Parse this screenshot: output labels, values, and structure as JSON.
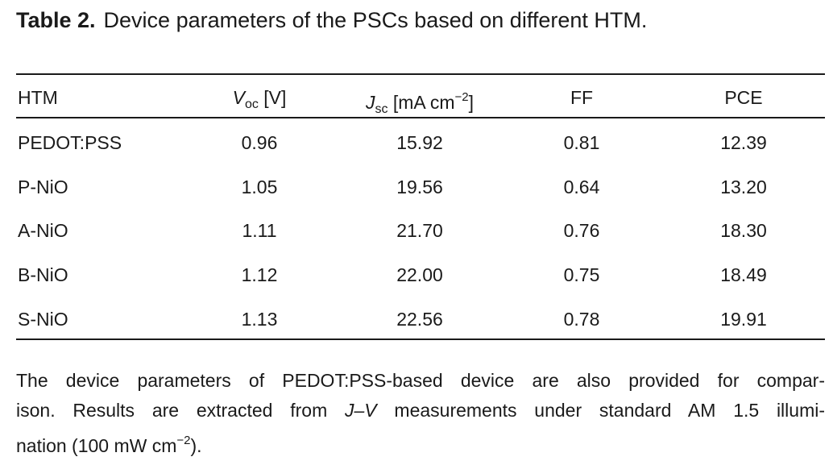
{
  "caption": {
    "label": "Table 2.",
    "text": "Device parameters of the PSCs based on different HTM."
  },
  "table": {
    "headers": {
      "htm": "HTM",
      "voc_sym": "V",
      "voc_sub": "oc",
      "voc_unit": " [V]",
      "jsc_sym": "J",
      "jsc_sub": "sc",
      "jsc_unit_pre": " [mA cm",
      "jsc_unit_sup": "−2",
      "jsc_unit_post": "]",
      "ff": "FF",
      "pce": "PCE"
    },
    "rows": [
      {
        "htm": "PEDOT:PSS",
        "voc": "0.96",
        "jsc": "15.92",
        "ff": "0.81",
        "pce": "12.39"
      },
      {
        "htm": "P-NiO",
        "voc": "1.05",
        "jsc": "19.56",
        "ff": "0.64",
        "pce": "13.20"
      },
      {
        "htm": "A-NiO",
        "voc": "1.11",
        "jsc": "21.70",
        "ff": "0.76",
        "pce": "18.30"
      },
      {
        "htm": "B-NiO",
        "voc": "1.12",
        "jsc": "22.00",
        "ff": "0.75",
        "pce": "18.49"
      },
      {
        "htm": "S-NiO",
        "voc": "1.13",
        "jsc": "22.56",
        "ff": "0.78",
        "pce": "19.91"
      }
    ]
  },
  "footnote": {
    "line1": "The device parameters of PEDOT:PSS-based device are also provided for compar-",
    "line2_pre": "ison. Results are extracted from ",
    "line2_jv": "J–V",
    "line2_post": " measurements under standard AM 1.5 illumi-",
    "line3_pre": "nation (100 mW cm",
    "line3_sup": "−2",
    "line3_post": ")."
  }
}
